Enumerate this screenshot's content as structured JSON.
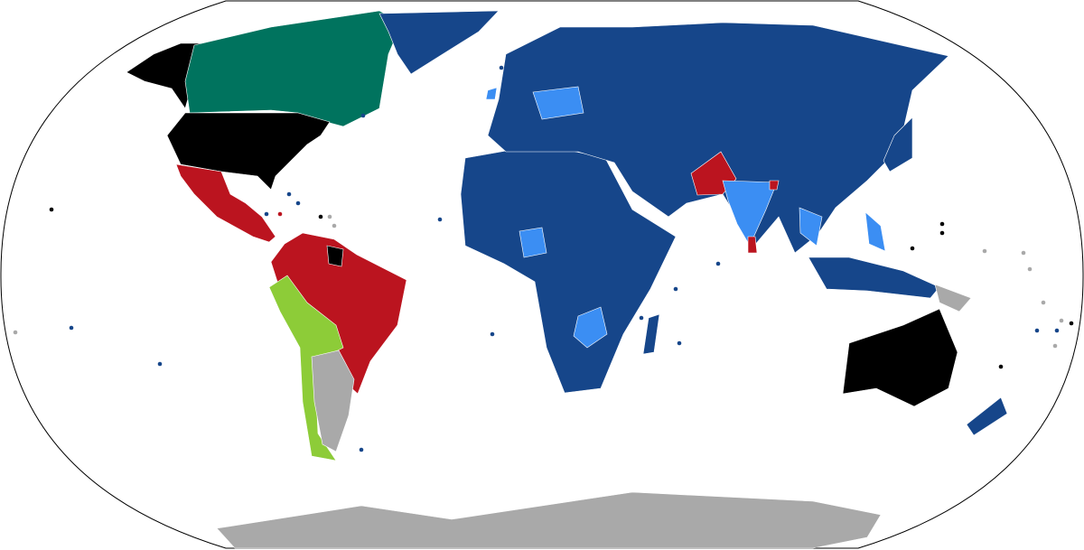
{
  "map": {
    "projection": "Robinson",
    "colors": {
      "dark_blue": "#16468a",
      "light_blue": "#3b8ef3",
      "red": "#bb141f",
      "teal": "#00735e",
      "lime": "#8dcc38",
      "black": "#000000",
      "gray": "#a9a9a9",
      "ocean": "#ffffff",
      "border": "#000000"
    },
    "regions": [
      {
        "id": "alaska",
        "color": "black"
      },
      {
        "id": "canada",
        "color": "teal"
      },
      {
        "id": "usa",
        "color": "black"
      },
      {
        "id": "mexico-central-america",
        "color": "red"
      },
      {
        "id": "greenland",
        "color": "dark_blue"
      },
      {
        "id": "northern-south-america-brazil",
        "color": "red"
      },
      {
        "id": "guianas",
        "color": "black"
      },
      {
        "id": "peru-bolivia-chile",
        "color": "lime"
      },
      {
        "id": "argentina",
        "color": "gray"
      },
      {
        "id": "africa",
        "color": "dark_blue"
      },
      {
        "id": "eurasia",
        "color": "dark_blue"
      },
      {
        "id": "central-europe",
        "color": "light_blue"
      },
      {
        "id": "ireland",
        "color": "light_blue"
      },
      {
        "id": "pakistan",
        "color": "red"
      },
      {
        "id": "india",
        "color": "light_blue"
      },
      {
        "id": "sri-lanka",
        "color": "red"
      },
      {
        "id": "bangladesh",
        "color": "red"
      },
      {
        "id": "indochina",
        "color": "light_blue"
      },
      {
        "id": "philippines",
        "color": "light_blue"
      },
      {
        "id": "nigeria",
        "color": "light_blue"
      },
      {
        "id": "zambia-zimbabwe",
        "color": "light_blue"
      },
      {
        "id": "madagascar",
        "color": "dark_blue"
      },
      {
        "id": "japan",
        "color": "dark_blue"
      },
      {
        "id": "indonesia",
        "color": "dark_blue"
      },
      {
        "id": "papua-new-guinea",
        "color": "gray"
      },
      {
        "id": "australia",
        "color": "black"
      },
      {
        "id": "new-zealand",
        "color": "dark_blue"
      },
      {
        "id": "antarctica",
        "color": "gray"
      }
    ]
  }
}
